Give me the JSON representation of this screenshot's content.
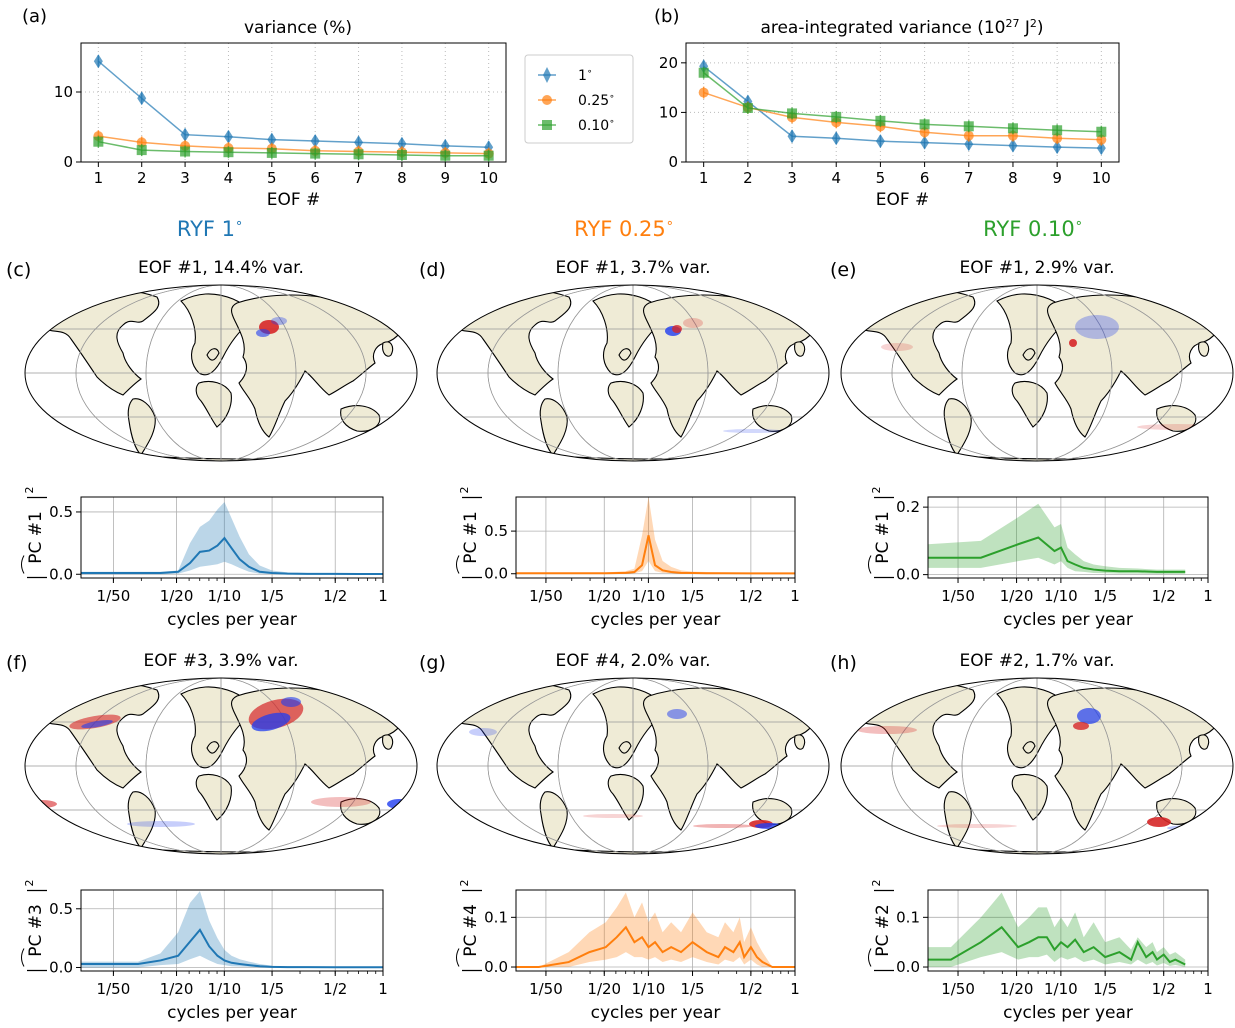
{
  "colors": {
    "c1": "#1f77b4",
    "c025": "#ff7f0e",
    "c010": "#2ca02c",
    "land": "#efebd6",
    "red": "#d62728",
    "blue": "#1f3cf0"
  },
  "headings": {
    "ryf1": "RYF 1",
    "ryf025": "RYF 0.25",
    "ryf010": "RYF 0.10",
    "deg": "∘"
  },
  "legend": {
    "items": [
      "1",
      "0.25",
      "0.10"
    ]
  },
  "chart_data": [
    {
      "id": "a",
      "panel_label": "(a)",
      "type": "line",
      "title": "variance (%)",
      "xlabel": "EOF #",
      "x": [
        1,
        2,
        3,
        4,
        5,
        6,
        7,
        8,
        9,
        10
      ],
      "xticks": [
        "1",
        "2",
        "3",
        "4",
        "5",
        "6",
        "7",
        "8",
        "9",
        "10"
      ],
      "ylim": [
        0,
        17
      ],
      "yticks": [
        0,
        10
      ],
      "grid": true,
      "series": [
        {
          "name": "1",
          "values": [
            14.4,
            9.1,
            3.9,
            3.6,
            3.2,
            3.0,
            2.8,
            2.6,
            2.3,
            2.1
          ],
          "marker": "diamond"
        },
        {
          "name": "0.25",
          "values": [
            3.7,
            2.8,
            2.3,
            2.0,
            1.9,
            1.6,
            1.5,
            1.4,
            1.3,
            1.2
          ],
          "marker": "circle"
        },
        {
          "name": "0.10",
          "values": [
            2.9,
            1.7,
            1.5,
            1.4,
            1.3,
            1.2,
            1.1,
            1.0,
            0.9,
            0.9
          ],
          "marker": "square"
        }
      ]
    },
    {
      "id": "b",
      "panel_label": "(b)",
      "type": "line",
      "title": "area-integrated variance (10",
      "title_sup": "27",
      "title_unit": " J",
      "title_sup2": "2",
      "title_end": ")",
      "xlabel": "EOF #",
      "x": [
        1,
        2,
        3,
        4,
        5,
        6,
        7,
        8,
        9,
        10
      ],
      "xticks": [
        "1",
        "2",
        "3",
        "4",
        "5",
        "6",
        "7",
        "8",
        "9",
        "10"
      ],
      "ylim": [
        0,
        24
      ],
      "yticks": [
        0,
        10,
        20
      ],
      "grid": true,
      "series": [
        {
          "name": "1",
          "values": [
            19.3,
            12.2,
            5.2,
            4.8,
            4.2,
            3.9,
            3.6,
            3.3,
            3.0,
            2.8
          ],
          "marker": "diamond"
        },
        {
          "name": "0.25",
          "values": [
            14.0,
            11.0,
            9.0,
            8.0,
            7.2,
            6.0,
            5.3,
            5.3,
            4.8,
            4.5
          ],
          "marker": "circle"
        },
        {
          "name": "0.10",
          "values": [
            18.0,
            10.9,
            9.8,
            9.1,
            8.3,
            7.6,
            7.2,
            6.8,
            6.4,
            6.1
          ],
          "marker": "square"
        }
      ]
    },
    {
      "id": "c",
      "panel_label": "(c)",
      "type": "line",
      "map_title": "EOF #1, 14.4% var.",
      "ylabel": "PC #1",
      "xlabel": "cycles per year",
      "color": "c1",
      "x": [
        0.0125,
        0.0179,
        0.0286,
        0.0396,
        0.0512,
        0.0608,
        0.0702,
        0.0803,
        0.0905,
        0.1002,
        0.111,
        0.125,
        0.143,
        0.167,
        0.2,
        0.25,
        0.333,
        0.5,
        0.7,
        1.0
      ],
      "values": [
        0.01,
        0.01,
        0.01,
        0.01,
        0.02,
        0.09,
        0.18,
        0.19,
        0.23,
        0.29,
        0.21,
        0.12,
        0.06,
        0.02,
        0.01,
        0.005,
        0.003,
        0.003,
        0.002,
        0.002
      ],
      "upper": [
        0.02,
        0.02,
        0.02,
        0.02,
        0.03,
        0.25,
        0.38,
        0.43,
        0.52,
        0.58,
        0.45,
        0.3,
        0.16,
        0.07,
        0.03,
        0.015,
        0.01,
        0.008,
        0.006,
        0.006
      ],
      "lower": [
        0.0,
        0.0,
        0.0,
        0.0,
        0.005,
        0.03,
        0.06,
        0.07,
        0.08,
        0.1,
        0.08,
        0.05,
        0.02,
        0.005,
        0.002,
        0.001,
        0.0,
        0.0,
        0.0,
        0.0
      ],
      "ylim": [
        -0.03,
        0.62
      ],
      "yticks": [
        0.0,
        0.5
      ],
      "ytick_labels": [
        "0.0",
        "0.5"
      ],
      "xticks_val": [
        0.02,
        0.05,
        0.1,
        0.2,
        0.5,
        1.0
      ],
      "xticks": [
        "1/50",
        "1/20",
        "1/10",
        "1/5",
        "1/2",
        "1"
      ]
    },
    {
      "id": "d",
      "panel_label": "(d)",
      "type": "line",
      "map_title": "EOF #1, 3.7% var.",
      "ylabel": "PC #1",
      "xlabel": "cycles per year",
      "color": "c025",
      "x": [
        0.0125,
        0.0286,
        0.0512,
        0.0702,
        0.0803,
        0.0905,
        0.1002,
        0.111,
        0.125,
        0.143,
        0.167,
        0.2,
        0.25,
        0.333,
        0.5,
        0.7,
        1.0
      ],
      "values": [
        0.005,
        0.005,
        0.005,
        0.01,
        0.02,
        0.1,
        0.45,
        0.1,
        0.04,
        0.02,
        0.01,
        0.008,
        0.006,
        0.005,
        0.004,
        0.004,
        0.004
      ],
      "upper": [
        0.015,
        0.015,
        0.015,
        0.03,
        0.06,
        0.45,
        0.9,
        0.4,
        0.15,
        0.08,
        0.04,
        0.025,
        0.02,
        0.015,
        0.012,
        0.012,
        0.01
      ],
      "lower": [
        0.0,
        0.0,
        0.0,
        0.0,
        0.005,
        0.03,
        0.15,
        0.03,
        0.01,
        0.005,
        0.0,
        0.0,
        0.0,
        0.0,
        0.0,
        0.0,
        0.0
      ],
      "ylim": [
        -0.05,
        0.9
      ],
      "yticks": [
        0.0,
        0.5
      ],
      "ytick_labels": [
        "0.0",
        "0.5"
      ],
      "xticks_val": [
        0.02,
        0.05,
        0.1,
        0.2,
        0.5,
        1.0
      ],
      "xticks": [
        "1/50",
        "1/20",
        "1/10",
        "1/5",
        "1/2",
        "1"
      ]
    },
    {
      "id": "e",
      "panel_label": "(e)",
      "type": "line",
      "map_title": "EOF #1, 2.9% var.",
      "ylabel": "PC #1",
      "xlabel": "cycles per year",
      "color": "c010",
      "x": [
        0.0125,
        0.0286,
        0.0512,
        0.0702,
        0.0905,
        0.1002,
        0.111,
        0.125,
        0.143,
        0.167,
        0.2,
        0.25,
        0.333,
        0.45,
        0.55,
        0.7
      ],
      "values": [
        0.05,
        0.05,
        0.09,
        0.11,
        0.07,
        0.08,
        0.04,
        0.03,
        0.02,
        0.015,
        0.012,
        0.01,
        0.01,
        0.008,
        0.008,
        0.008
      ],
      "upper": [
        0.09,
        0.1,
        0.17,
        0.21,
        0.14,
        0.15,
        0.08,
        0.06,
        0.04,
        0.03,
        0.025,
        0.02,
        0.018,
        0.015,
        0.015,
        0.015
      ],
      "lower": [
        0.02,
        0.02,
        0.04,
        0.05,
        0.03,
        0.04,
        0.02,
        0.01,
        0.008,
        0.005,
        0.004,
        0.003,
        0.003,
        0.002,
        0.002,
        0.002
      ],
      "ylim": [
        -0.01,
        0.23
      ],
      "yticks": [
        0.0,
        0.2
      ],
      "ytick_labels": [
        "0.0",
        "0.2"
      ],
      "xticks_val": [
        0.02,
        0.05,
        0.1,
        0.2,
        0.5,
        1.0
      ],
      "xticks": [
        "1/50",
        "1/20",
        "1/10",
        "1/5",
        "1/2",
        "1"
      ]
    },
    {
      "id": "f",
      "panel_label": "(f)",
      "type": "line",
      "map_title": "EOF #3, 3.9% var.",
      "ylabel": "PC #3",
      "xlabel": "cycles per year",
      "color": "c1",
      "x": [
        0.0125,
        0.0179,
        0.0286,
        0.0396,
        0.0512,
        0.0608,
        0.0702,
        0.0803,
        0.0905,
        0.1002,
        0.111,
        0.125,
        0.143,
        0.167,
        0.2,
        0.25,
        0.333,
        0.5,
        0.7,
        1.0
      ],
      "values": [
        0.03,
        0.03,
        0.03,
        0.06,
        0.1,
        0.22,
        0.32,
        0.18,
        0.1,
        0.06,
        0.04,
        0.03,
        0.02,
        0.01,
        0.005,
        0.003,
        0.003,
        0.002,
        0.002,
        0.002
      ],
      "upper": [
        0.05,
        0.05,
        0.05,
        0.12,
        0.3,
        0.55,
        0.65,
        0.4,
        0.25,
        0.15,
        0.1,
        0.07,
        0.05,
        0.03,
        0.015,
        0.01,
        0.008,
        0.006,
        0.005,
        0.005
      ],
      "lower": [
        0.0,
        0.0,
        0.0,
        0.02,
        0.03,
        0.07,
        0.1,
        0.06,
        0.03,
        0.02,
        0.01,
        0.008,
        0.005,
        0.002,
        0.0,
        0.0,
        0.0,
        0.0,
        0.0,
        0.0
      ],
      "ylim": [
        -0.03,
        0.66
      ],
      "yticks": [
        0.0,
        0.5
      ],
      "ytick_labels": [
        "0.0",
        "0.5"
      ],
      "xticks_val": [
        0.02,
        0.05,
        0.1,
        0.2,
        0.5,
        1.0
      ],
      "xticks": [
        "1/50",
        "1/20",
        "1/10",
        "1/5",
        "1/2",
        "1"
      ]
    },
    {
      "id": "g",
      "panel_label": "(g)",
      "type": "line",
      "map_title": "EOF #4, 2.0% var.",
      "ylabel": "PC #4",
      "xlabel": "cycles per year",
      "color": "c025",
      "x": [
        0.0125,
        0.0179,
        0.0286,
        0.0396,
        0.0512,
        0.0608,
        0.0702,
        0.0803,
        0.0905,
        0.1002,
        0.111,
        0.125,
        0.143,
        0.167,
        0.2,
        0.25,
        0.3,
        0.333,
        0.38,
        0.42,
        0.45,
        0.5,
        0.55,
        0.6,
        0.7,
        1.0
      ],
      "values": [
        0.0,
        0.0,
        0.01,
        0.03,
        0.04,
        0.06,
        0.08,
        0.05,
        0.06,
        0.04,
        0.05,
        0.03,
        0.04,
        0.03,
        0.05,
        0.03,
        0.02,
        0.04,
        0.03,
        0.05,
        0.02,
        0.04,
        0.02,
        0.01,
        0.0,
        0.0
      ],
      "upper": [
        0.0,
        0.0,
        0.03,
        0.07,
        0.09,
        0.12,
        0.15,
        0.1,
        0.13,
        0.09,
        0.11,
        0.07,
        0.09,
        0.07,
        0.11,
        0.07,
        0.06,
        0.09,
        0.07,
        0.1,
        0.05,
        0.08,
        0.05,
        0.03,
        0.0,
        0.0
      ],
      "lower": [
        0.0,
        0.0,
        0.0,
        0.01,
        0.015,
        0.02,
        0.03,
        0.02,
        0.02,
        0.015,
        0.02,
        0.01,
        0.015,
        0.01,
        0.02,
        0.01,
        0.005,
        0.015,
        0.01,
        0.02,
        0.005,
        0.015,
        0.005,
        0.0,
        0.0,
        0.0
      ],
      "ylim": [
        -0.008,
        0.155
      ],
      "yticks": [
        0.0,
        0.1
      ],
      "ytick_labels": [
        "0.0",
        "0.1"
      ],
      "xticks_val": [
        0.02,
        0.05,
        0.1,
        0.2,
        0.5,
        1.0
      ],
      "xticks": [
        "1/50",
        "1/20",
        "1/10",
        "1/5",
        "1/2",
        "1"
      ]
    },
    {
      "id": "h",
      "panel_label": "(h)",
      "type": "line",
      "map_title": "EOF #2, 1.7% var.",
      "ylabel": "PC #2",
      "xlabel": "cycles per year",
      "color": "c010",
      "x": [
        0.0125,
        0.0179,
        0.0286,
        0.0396,
        0.0512,
        0.0608,
        0.0702,
        0.0803,
        0.0905,
        0.1002,
        0.111,
        0.125,
        0.143,
        0.167,
        0.2,
        0.25,
        0.3,
        0.333,
        0.38,
        0.42,
        0.45,
        0.5,
        0.55,
        0.6,
        0.7
      ],
      "values": [
        0.015,
        0.015,
        0.05,
        0.08,
        0.04,
        0.05,
        0.06,
        0.06,
        0.035,
        0.05,
        0.04,
        0.055,
        0.03,
        0.04,
        0.02,
        0.03,
        0.015,
        0.05,
        0.02,
        0.03,
        0.015,
        0.025,
        0.01,
        0.015,
        0.005
      ],
      "upper": [
        0.04,
        0.04,
        0.1,
        0.15,
        0.08,
        0.1,
        0.12,
        0.12,
        0.08,
        0.1,
        0.08,
        0.11,
        0.06,
        0.09,
        0.05,
        0.06,
        0.035,
        0.06,
        0.04,
        0.05,
        0.03,
        0.04,
        0.025,
        0.03,
        0.015
      ],
      "lower": [
        0.0,
        0.0,
        0.02,
        0.03,
        0.015,
        0.02,
        0.02,
        0.025,
        0.01,
        0.02,
        0.015,
        0.02,
        0.01,
        0.015,
        0.005,
        0.01,
        0.005,
        0.015,
        0.005,
        0.01,
        0.003,
        0.008,
        0.002,
        0.004,
        0.0
      ],
      "ylim": [
        -0.008,
        0.155
      ],
      "yticks": [
        0.0,
        0.1
      ],
      "ytick_labels": [
        "0.0",
        "0.1"
      ],
      "xticks_val": [
        0.02,
        0.05,
        0.1,
        0.2,
        0.5,
        1.0
      ],
      "xticks": [
        "1/50",
        "1/20",
        "1/10",
        "1/5",
        "1/2",
        "1"
      ]
    }
  ]
}
